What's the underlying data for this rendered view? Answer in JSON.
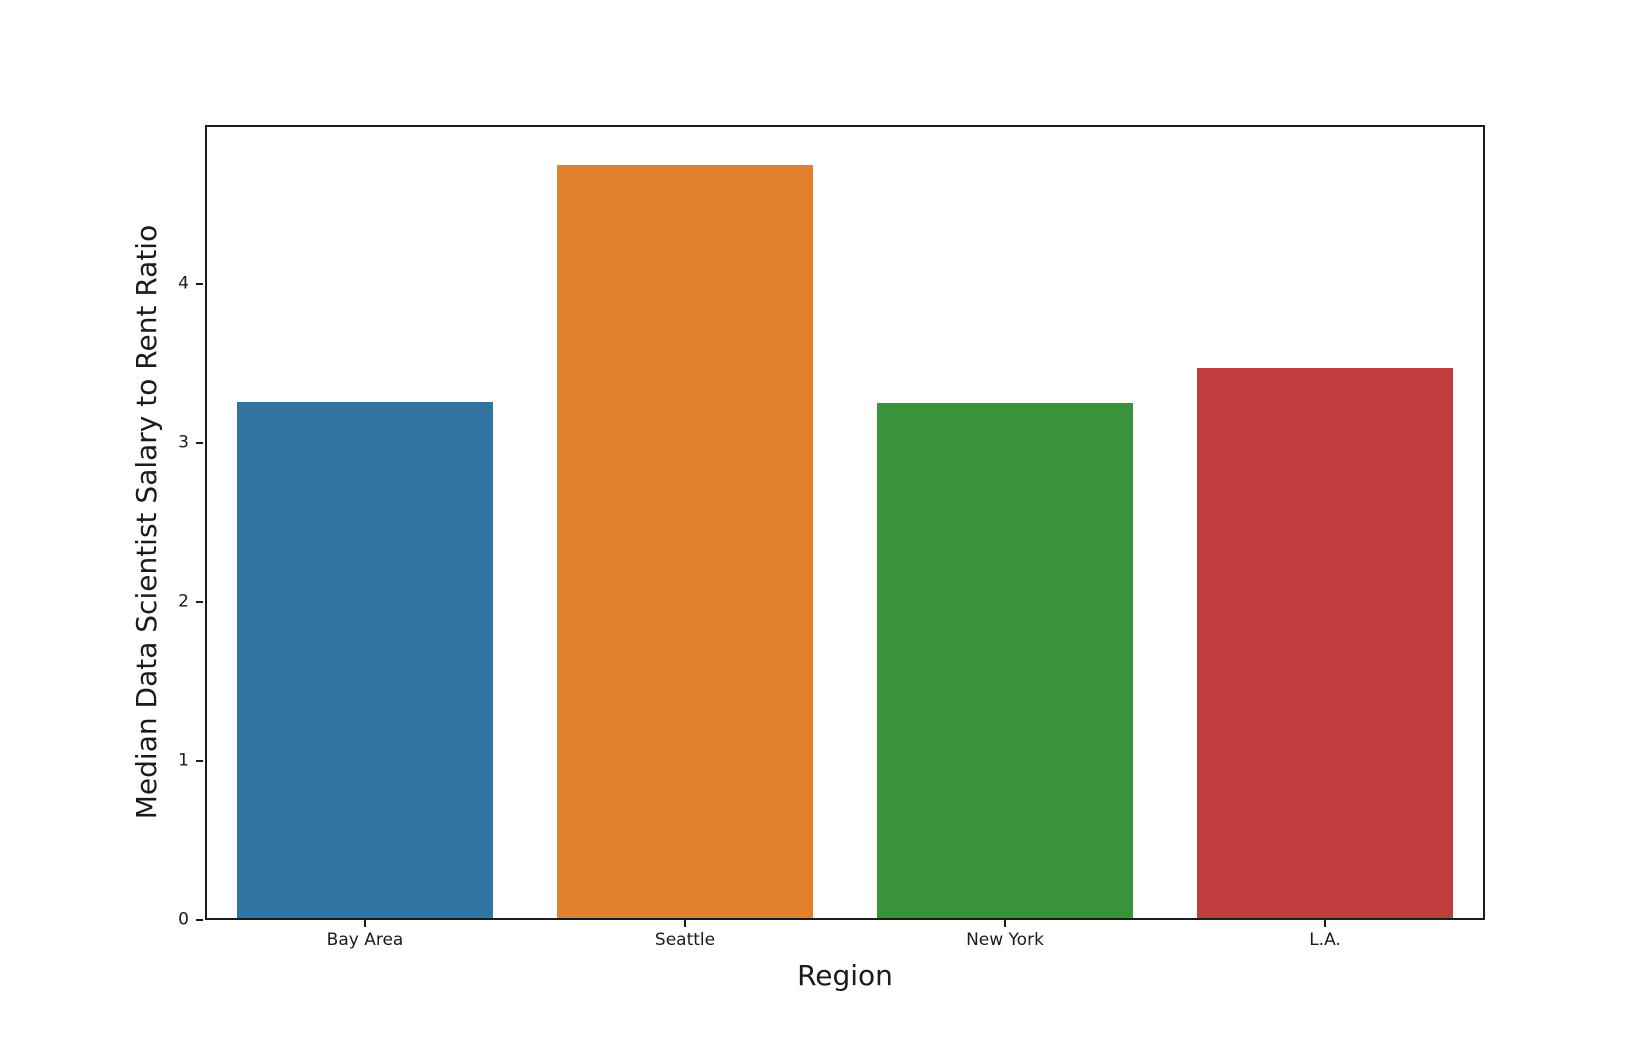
{
  "figure": {
    "background_color": "#ffffff",
    "axis_color": "#1b1b1b",
    "text_color": "#1b1b1b"
  },
  "chart_data": {
    "type": "bar",
    "title": "",
    "xlabel": "Region",
    "ylabel": "Median Data Scientist Salary to Rent Ratio",
    "categories": [
      "Bay Area",
      "Seattle",
      "New York",
      "L.A."
    ],
    "values": [
      3.26,
      4.75,
      3.25,
      3.47
    ],
    "bar_colors": [
      "#3274a1",
      "#e1812c",
      "#3a923a",
      "#c03d3e"
    ],
    "ylim": [
      0,
      5
    ],
    "yticks": [
      "0",
      "1",
      "2",
      "3",
      "4"
    ],
    "ytick_values": [
      0,
      1,
      2,
      3,
      4
    ],
    "bar_width_fraction": 0.8,
    "grid": false,
    "legend_position": "none"
  }
}
